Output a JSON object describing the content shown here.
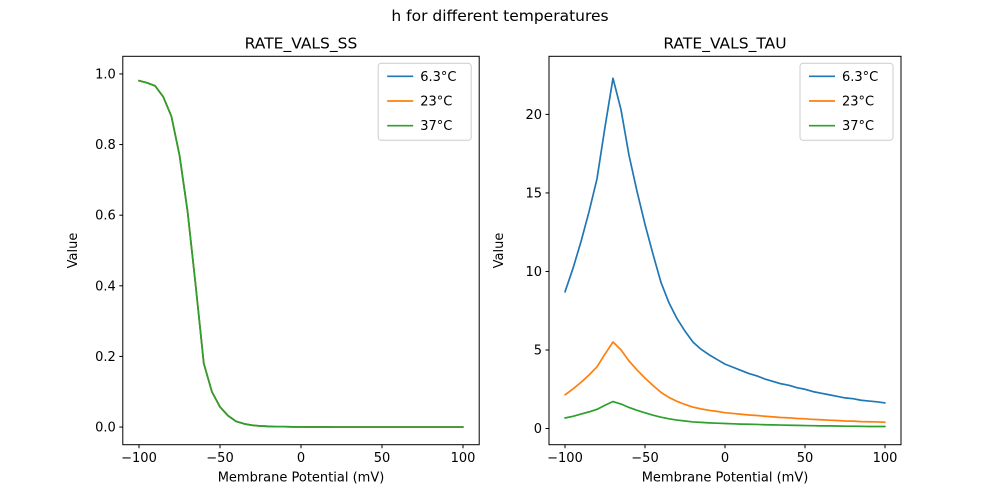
{
  "figure": {
    "title": "h for different temperatures",
    "background": "#ffffff"
  },
  "legend": {
    "position": "upper right",
    "entries": [
      {
        "label": "6.3°C",
        "color": "#1f77b4"
      },
      {
        "label": "23°C",
        "color": "#ff7f0e"
      },
      {
        "label": "37°C",
        "color": "#2ca02c"
      }
    ]
  },
  "chart_data": [
    {
      "type": "line",
      "title": "RATE_VALS_SS",
      "xlabel": "Membrane Potential (mV)",
      "ylabel": "Value",
      "xlim": [
        -110,
        110
      ],
      "ylim": [
        -0.05,
        1.05
      ],
      "grid": false,
      "xticks": {
        "values": [
          -100,
          -50,
          0,
          50,
          100
        ],
        "labels": [
          "−100",
          "−50",
          "0",
          "50",
          "100"
        ]
      },
      "yticks": {
        "values": [
          0,
          0.2,
          0.4,
          0.6,
          0.8,
          1.0
        ],
        "labels": [
          "0.0",
          "0.2",
          "0.4",
          "0.6",
          "0.8",
          "1.0"
        ]
      },
      "x": [
        -100,
        -95,
        -90,
        -85,
        -80,
        -75,
        -70,
        -65,
        -60,
        -55,
        -50,
        -45,
        -40,
        -35,
        -30,
        -25,
        -20,
        -15,
        -10,
        -5,
        0,
        5,
        10,
        15,
        20,
        25,
        30,
        35,
        40,
        45,
        50,
        55,
        60,
        65,
        70,
        75,
        80,
        85,
        90,
        95,
        100
      ],
      "series": [
        {
          "name": "6.3°C",
          "color": "#1f77b4",
          "values": [
            0.981,
            0.975,
            0.966,
            0.935,
            0.88,
            0.77,
            0.61,
            0.4,
            0.18,
            0.1,
            0.057,
            0.032,
            0.016,
            0.009,
            0.005,
            0.003,
            0.002,
            0.001,
            0.001,
            0.0005,
            0.0003,
            0.0002,
            0.0001,
            0.0001,
            0,
            0,
            0,
            0,
            0,
            0,
            0,
            0,
            0,
            0,
            0,
            0,
            0,
            0,
            0,
            0,
            0
          ]
        },
        {
          "name": "23°C",
          "color": "#ff7f0e",
          "values": [
            0.981,
            0.975,
            0.966,
            0.935,
            0.88,
            0.77,
            0.61,
            0.4,
            0.18,
            0.1,
            0.057,
            0.032,
            0.016,
            0.009,
            0.005,
            0.003,
            0.002,
            0.001,
            0.001,
            0.0005,
            0.0003,
            0.0002,
            0.0001,
            0.0001,
            0,
            0,
            0,
            0,
            0,
            0,
            0,
            0,
            0,
            0,
            0,
            0,
            0,
            0,
            0,
            0,
            0
          ]
        },
        {
          "name": "37°C",
          "color": "#2ca02c",
          "values": [
            0.981,
            0.975,
            0.966,
            0.935,
            0.88,
            0.77,
            0.61,
            0.4,
            0.18,
            0.1,
            0.057,
            0.032,
            0.016,
            0.009,
            0.005,
            0.003,
            0.002,
            0.001,
            0.001,
            0.0005,
            0.0003,
            0.0002,
            0.0001,
            0.0001,
            0,
            0,
            0,
            0,
            0,
            0,
            0,
            0,
            0,
            0,
            0,
            0,
            0,
            0,
            0,
            0,
            0
          ]
        }
      ]
    },
    {
      "type": "line",
      "title": "RATE_VALS_TAU",
      "xlabel": "Membrane Potential (mV)",
      "ylabel": "Value",
      "xlim": [
        -110,
        110
      ],
      "ylim": [
        -1.03,
        23.7
      ],
      "grid": false,
      "xticks": {
        "values": [
          -100,
          -50,
          0,
          50,
          100
        ],
        "labels": [
          "−100",
          "−50",
          "0",
          "50",
          "100"
        ]
      },
      "yticks": {
        "values": [
          0,
          5,
          10,
          15,
          20
        ],
        "labels": [
          "0",
          "5",
          "10",
          "15",
          "20"
        ]
      },
      "x": [
        -100,
        -95,
        -90,
        -85,
        -80,
        -75,
        -70,
        -65,
        -60,
        -55,
        -50,
        -45,
        -40,
        -35,
        -30,
        -25,
        -20,
        -15,
        -10,
        -5,
        0,
        5,
        10,
        15,
        20,
        25,
        30,
        35,
        40,
        45,
        50,
        55,
        60,
        65,
        70,
        75,
        80,
        85,
        90,
        95,
        100
      ],
      "series": [
        {
          "name": "6.3°C",
          "color": "#1f77b4",
          "values": [
            8.7,
            10.2,
            11.9,
            13.8,
            15.9,
            19.2,
            22.3,
            20.3,
            17.4,
            15.1,
            13.0,
            11.1,
            9.3,
            8.0,
            7.0,
            6.2,
            5.5,
            5.05,
            4.7,
            4.4,
            4.1,
            3.9,
            3.7,
            3.5,
            3.35,
            3.15,
            3.0,
            2.85,
            2.75,
            2.6,
            2.5,
            2.35,
            2.25,
            2.15,
            2.05,
            1.95,
            1.9,
            1.8,
            1.75,
            1.7,
            1.63
          ]
        },
        {
          "name": "23°C",
          "color": "#ff7f0e",
          "values": [
            2.15,
            2.52,
            2.94,
            3.41,
            3.93,
            4.74,
            5.51,
            5.01,
            4.3,
            3.73,
            3.21,
            2.74,
            2.3,
            1.98,
            1.73,
            1.53,
            1.36,
            1.25,
            1.16,
            1.09,
            1.01,
            0.96,
            0.91,
            0.86,
            0.83,
            0.78,
            0.74,
            0.7,
            0.68,
            0.64,
            0.62,
            0.58,
            0.56,
            0.53,
            0.51,
            0.48,
            0.47,
            0.44,
            0.43,
            0.42,
            0.4
          ]
        },
        {
          "name": "37°C",
          "color": "#2ca02c",
          "values": [
            0.67,
            0.78,
            0.92,
            1.06,
            1.22,
            1.48,
            1.72,
            1.56,
            1.34,
            1.16,
            1.0,
            0.85,
            0.72,
            0.62,
            0.54,
            0.48,
            0.42,
            0.39,
            0.36,
            0.34,
            0.32,
            0.3,
            0.28,
            0.27,
            0.26,
            0.24,
            0.23,
            0.22,
            0.21,
            0.2,
            0.19,
            0.18,
            0.17,
            0.17,
            0.16,
            0.15,
            0.15,
            0.14,
            0.13,
            0.13,
            0.13
          ]
        }
      ]
    }
  ]
}
